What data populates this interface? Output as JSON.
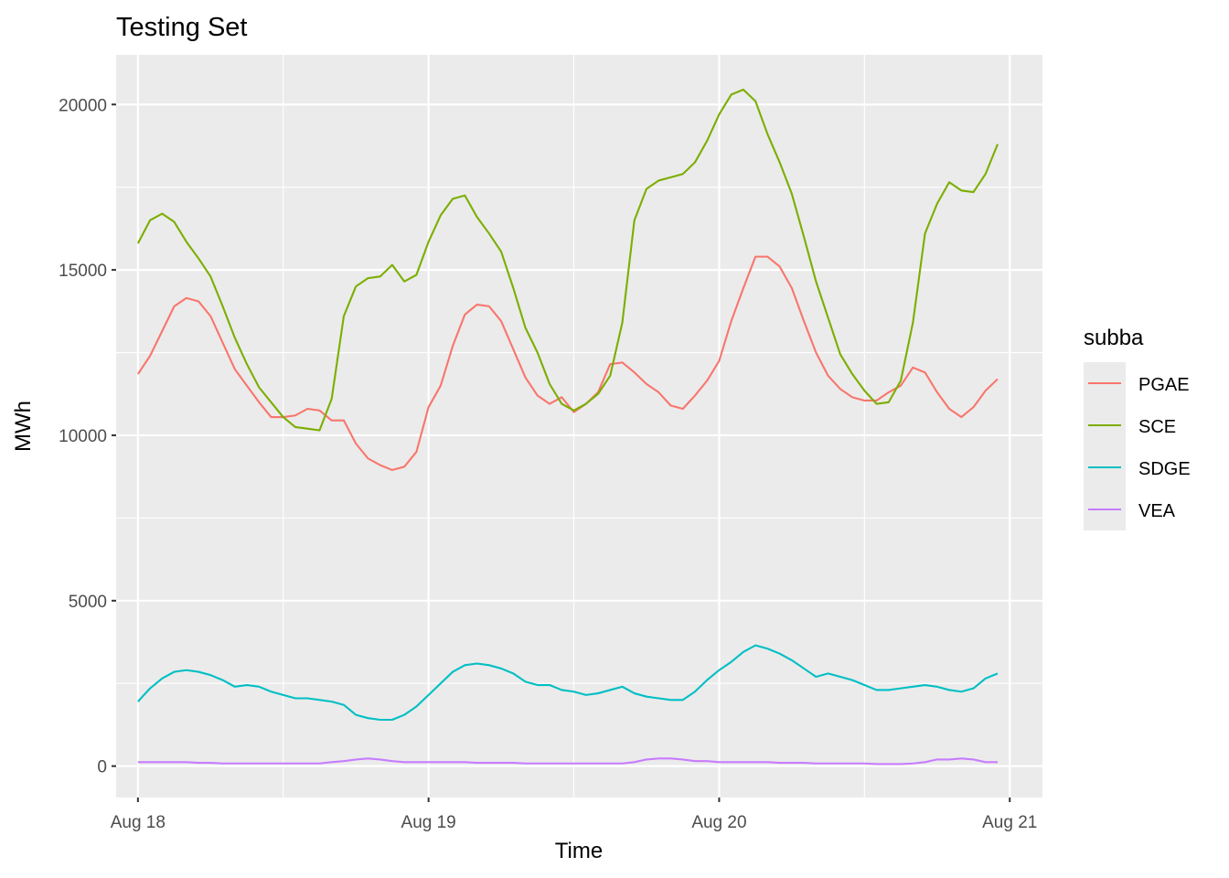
{
  "chart_data": {
    "type": "line",
    "title": "Testing Set",
    "xlabel": "Time",
    "ylabel": "MWh",
    "x_ticks": [
      "Aug 18",
      "Aug 19",
      "Aug 20",
      "Aug 21"
    ],
    "y_ticks": [
      0,
      5000,
      10000,
      15000,
      20000
    ],
    "ylim": [
      -950,
      21500
    ],
    "xlim_hours": [
      -1.8,
      74.7
    ],
    "x_unit": "hours from Aug 18 00:00",
    "grid": true,
    "legend_title": "subba",
    "legend_position": "right",
    "series": [
      {
        "name": "PGAE",
        "color": "#F8766D",
        "values": [
          11850,
          12400,
          13150,
          13900,
          14150,
          14050,
          13600,
          12800,
          12000,
          11500,
          11000,
          10550,
          10550,
          10600,
          10800,
          10750,
          10450,
          10450,
          9750,
          9300,
          9100,
          8950,
          9050,
          9500,
          10850,
          11500,
          12700,
          13650,
          13950,
          13900,
          13450,
          12600,
          11750,
          11200,
          10950,
          11150,
          10700,
          10950,
          11300,
          12150,
          12200,
          11900,
          11550,
          11300,
          10900,
          10800,
          11200,
          11650,
          12250,
          13450,
          14450,
          15400,
          15400,
          15100,
          14450,
          13450,
          12500,
          11800,
          11400,
          11150,
          11050,
          11050,
          11300,
          11500,
          12050,
          11900,
          11300,
          10800,
          10550,
          10850,
          11350,
          11700
        ]
      },
      {
        "name": "SCE",
        "color": "#7CAE00",
        "values": [
          15800,
          16500,
          16700,
          16450,
          15850,
          15350,
          14800,
          13900,
          12950,
          12150,
          11450,
          11000,
          10550,
          10250,
          10200,
          10150,
          11100,
          13600,
          14500,
          14750,
          14800,
          15150,
          14650,
          14850,
          15850,
          16650,
          17150,
          17250,
          16600,
          16100,
          15550,
          14450,
          13250,
          12500,
          11550,
          10950,
          10750,
          10950,
          11250,
          11800,
          13400,
          16500,
          17450,
          17700,
          17800,
          17900,
          18250,
          18900,
          19700,
          20300,
          20450,
          20100,
          19100,
          18250,
          17300,
          16000,
          14650,
          13550,
          12450,
          11850,
          11350,
          10950,
          11000,
          11650,
          13400,
          16100,
          17000,
          17650,
          17400,
          17350,
          17900,
          18800
        ]
      },
      {
        "name": "SDGE",
        "color": "#00BFC4",
        "values": [
          1950,
          2350,
          2650,
          2850,
          2900,
          2850,
          2750,
          2600,
          2400,
          2450,
          2400,
          2250,
          2150,
          2050,
          2050,
          2000,
          1950,
          1850,
          1550,
          1450,
          1400,
          1400,
          1550,
          1800,
          2150,
          2500,
          2850,
          3050,
          3100,
          3050,
          2950,
          2800,
          2550,
          2450,
          2450,
          2300,
          2250,
          2150,
          2200,
          2300,
          2400,
          2200,
          2100,
          2050,
          2000,
          2000,
          2250,
          2600,
          2900,
          3150,
          3450,
          3650,
          3550,
          3400,
          3200,
          2950,
          2700,
          2800,
          2700,
          2600,
          2450,
          2300,
          2300,
          2350,
          2400,
          2450,
          2400,
          2300,
          2250,
          2350,
          2650,
          2800
        ]
      },
      {
        "name": "VEA",
        "color": "#C77CFF",
        "values": [
          120,
          120,
          120,
          120,
          120,
          100,
          100,
          80,
          80,
          80,
          80,
          80,
          80,
          80,
          80,
          80,
          120,
          150,
          200,
          230,
          200,
          150,
          120,
          120,
          120,
          120,
          120,
          120,
          100,
          100,
          100,
          100,
          80,
          80,
          80,
          80,
          80,
          80,
          80,
          80,
          80,
          120,
          200,
          230,
          230,
          200,
          150,
          150,
          120,
          120,
          120,
          120,
          120,
          100,
          100,
          100,
          80,
          80,
          80,
          80,
          80,
          60,
          60,
          60,
          80,
          120,
          200,
          200,
          230,
          200,
          120,
          120
        ]
      }
    ]
  }
}
